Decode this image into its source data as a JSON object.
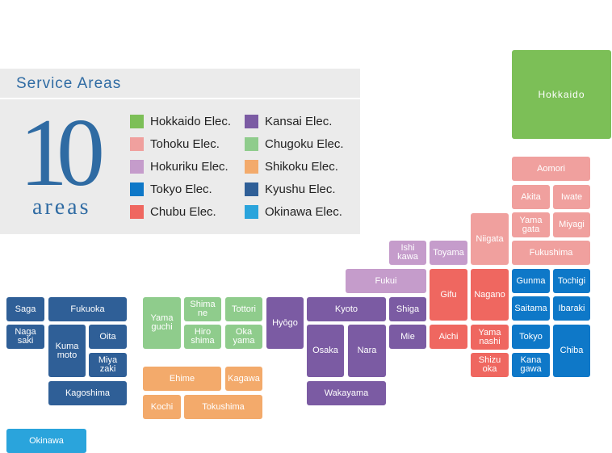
{
  "panel": {
    "title": "Service Areas",
    "count": "10",
    "count_unit": "areas"
  },
  "legend": [
    {
      "label": "Hokkaido Elec.",
      "color": "#7cbf57"
    },
    {
      "label": "Tohoku Elec.",
      "color": "#f0a09e"
    },
    {
      "label": "Hokuriku Elec.",
      "color": "#c59ccb"
    },
    {
      "label": "Tokyo Elec.",
      "color": "#0e78c8"
    },
    {
      "label": "Chubu Elec.",
      "color": "#ef6760"
    },
    {
      "label": "Kansai Elec.",
      "color": "#7b5ba3"
    },
    {
      "label": "Chugoku Elec.",
      "color": "#8fcc8c"
    },
    {
      "label": "Shikoku Elec.",
      "color": "#f3aa6b"
    },
    {
      "label": "Kyushu Elec.",
      "color": "#2f5f97"
    },
    {
      "label": "Okinawa Elec.",
      "color": "#2aa4dc"
    }
  ],
  "prefectures": [
    {
      "label": "Hokkaido",
      "color": "#7cbf57"
    },
    {
      "label": "Aomori",
      "color": "#f0a09e"
    },
    {
      "label": "Akita",
      "color": "#f0a09e"
    },
    {
      "label": "Iwate",
      "color": "#f0a09e"
    },
    {
      "label": "Yama\ngata",
      "color": "#f0a09e"
    },
    {
      "label": "Miyagi",
      "color": "#f0a09e"
    },
    {
      "label": "Niigata",
      "color": "#f0a09e"
    },
    {
      "label": "Fukushima",
      "color": "#f0a09e"
    },
    {
      "label": "Ishi\nkawa",
      "color": "#c59ccb"
    },
    {
      "label": "Toyama",
      "color": "#c59ccb"
    },
    {
      "label": "Fukui",
      "color": "#c59ccb"
    },
    {
      "label": "Gifu",
      "color": "#ef6760"
    },
    {
      "label": "Nagano",
      "color": "#ef6760"
    },
    {
      "label": "Aichi",
      "color": "#ef6760"
    },
    {
      "label": "Yama\nnashi",
      "color": "#ef6760"
    },
    {
      "label": "Shizu\noka",
      "color": "#ef6760"
    },
    {
      "label": "Gunma",
      "color": "#0e78c8"
    },
    {
      "label": "Tochigi",
      "color": "#0e78c8"
    },
    {
      "label": "Saitama",
      "color": "#0e78c8"
    },
    {
      "label": "Ibaraki",
      "color": "#0e78c8"
    },
    {
      "label": "Tokyo",
      "color": "#0e78c8"
    },
    {
      "label": "Chiba",
      "color": "#0e78c8"
    },
    {
      "label": "Kana\ngawa",
      "color": "#0e78c8"
    },
    {
      "label": "Hyōgo",
      "color": "#7b5ba3"
    },
    {
      "label": "Kyoto",
      "color": "#7b5ba3"
    },
    {
      "label": "Shiga",
      "color": "#7b5ba3"
    },
    {
      "label": "Osaka",
      "color": "#7b5ba3"
    },
    {
      "label": "Nara",
      "color": "#7b5ba3"
    },
    {
      "label": "Mie",
      "color": "#7b5ba3"
    },
    {
      "label": "Wakayama",
      "color": "#7b5ba3"
    },
    {
      "label": "Yama\nguchi",
      "color": "#8fcc8c"
    },
    {
      "label": "Shima\nne",
      "color": "#8fcc8c"
    },
    {
      "label": "Tottori",
      "color": "#8fcc8c"
    },
    {
      "label": "Hiro\nshima",
      "color": "#8fcc8c"
    },
    {
      "label": "Oka\nyama",
      "color": "#8fcc8c"
    },
    {
      "label": "Ehime",
      "color": "#f3aa6b"
    },
    {
      "label": "Kagawa",
      "color": "#f3aa6b"
    },
    {
      "label": "Kochi",
      "color": "#f3aa6b"
    },
    {
      "label": "Tokushima",
      "color": "#f3aa6b"
    },
    {
      "label": "Saga",
      "color": "#2f5f97"
    },
    {
      "label": "Fukuoka",
      "color": "#2f5f97"
    },
    {
      "label": "Naga\nsaki",
      "color": "#2f5f97"
    },
    {
      "label": "Kuma\nmoto",
      "color": "#2f5f97"
    },
    {
      "label": "Oita",
      "color": "#2f5f97"
    },
    {
      "label": "Miya\nzaki",
      "color": "#2f5f97"
    },
    {
      "label": "Kagoshima",
      "color": "#2f5f97"
    },
    {
      "label": "Okinawa",
      "color": "#2aa4dc"
    }
  ]
}
